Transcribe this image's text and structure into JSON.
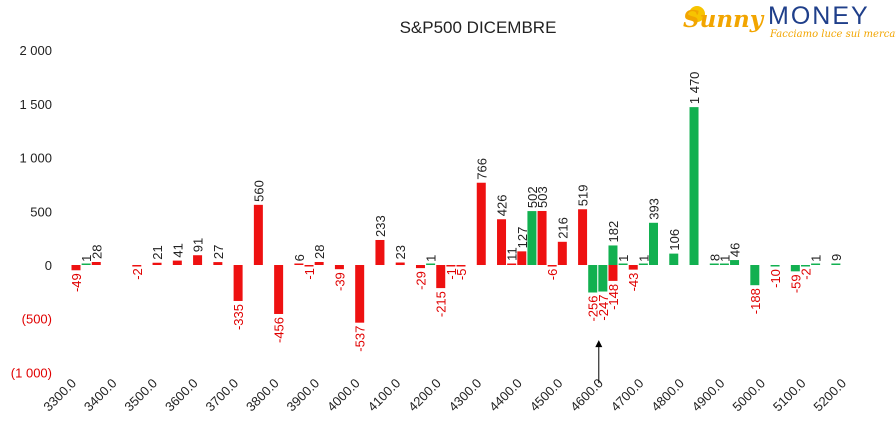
{
  "chart_data": {
    "type": "bar",
    "title": "S&P500 DICEMBRE",
    "xlabel": "",
    "ylabel": "",
    "ylim": [
      -1000,
      2000
    ],
    "y_ticks": [
      {
        "value": 2000,
        "label": "2 000"
      },
      {
        "value": 1500,
        "label": "1 500"
      },
      {
        "value": 1000,
        "label": "1 000"
      },
      {
        "value": 500,
        "label": "500"
      },
      {
        "value": 0,
        "label": "0"
      },
      {
        "value": -500,
        "label": "(500)"
      },
      {
        "value": -1000,
        "label": "(1 000)"
      }
    ],
    "x_ticks": [
      "3300.0",
      "3400.0",
      "3500.0",
      "3600.0",
      "3700.0",
      "3800.0",
      "3900.0",
      "4000.0",
      "4100.0",
      "4200.0",
      "4300.0",
      "4400.0",
      "4500.0",
      "4600.0",
      "4700.0",
      "4800.0",
      "4900.0",
      "5000.0",
      "5100.0",
      "5200.0"
    ],
    "grid": false,
    "colors": {
      "red": "#ee1111",
      "green": "#12b050",
      "negative_label": "#e00000",
      "text": "#222222"
    },
    "series": [
      {
        "color": "red",
        "points": [
          {
            "x": 3300,
            "y": -49,
            "label": "-49"
          },
          {
            "x": 3350,
            "y": 28,
            "label": "28"
          },
          {
            "x": 3450,
            "y": -2,
            "label": "-2"
          },
          {
            "x": 3500,
            "y": 21,
            "label": "21"
          },
          {
            "x": 3550,
            "y": 41,
            "label": "41"
          },
          {
            "x": 3600,
            "y": 91,
            "label": "91"
          },
          {
            "x": 3650,
            "y": 27,
            "label": "27"
          },
          {
            "x": 3700,
            "y": -335,
            "label": "-335"
          },
          {
            "x": 3750,
            "y": 560,
            "label": "560"
          },
          {
            "x": 3800,
            "y": -456,
            "label": "-456"
          },
          {
            "x": 3850,
            "y": 6,
            "label": "6"
          },
          {
            "x": 3875,
            "y": -1,
            "label": "-1"
          },
          {
            "x": 3900,
            "y": 28,
            "label": "28"
          },
          {
            "x": 3950,
            "y": -39,
            "label": "-39"
          },
          {
            "x": 4000,
            "y": -537,
            "label": "-537"
          },
          {
            "x": 4050,
            "y": 233,
            "label": "233"
          },
          {
            "x": 4100,
            "y": 23,
            "label": "23"
          },
          {
            "x": 4150,
            "y": -29,
            "label": "-29"
          },
          {
            "x": 4200,
            "y": -215,
            "label": "-215"
          },
          {
            "x": 4225,
            "y": -1,
            "label": "-1"
          },
          {
            "x": 4250,
            "y": -5,
            "label": "-5"
          },
          {
            "x": 4300,
            "y": 766,
            "label": "766"
          },
          {
            "x": 4350,
            "y": 426,
            "label": "426"
          },
          {
            "x": 4375,
            "y": 11,
            "label": "11"
          },
          {
            "x": 4400,
            "y": 127,
            "label": "127"
          },
          {
            "x": 4450,
            "y": 503,
            "label": "503"
          },
          {
            "x": 4475,
            "y": -6,
            "label": "-6"
          },
          {
            "x": 4500,
            "y": 216,
            "label": "216"
          },
          {
            "x": 4550,
            "y": 519,
            "label": "519"
          },
          {
            "x": 4625,
            "y": -148,
            "label": "-148"
          },
          {
            "x": 4675,
            "y": -43,
            "label": "-43"
          }
        ]
      },
      {
        "color": "green",
        "points": [
          {
            "x": 3325,
            "y": 1,
            "label": "1"
          },
          {
            "x": 4175,
            "y": 1,
            "label": "1"
          },
          {
            "x": 4425,
            "y": 502,
            "label": "502"
          },
          {
            "x": 4575,
            "y": -256,
            "label": "-256"
          },
          {
            "x": 4600,
            "y": -247,
            "label": "-247"
          },
          {
            "x": 4625,
            "y": 182,
            "label": "182"
          },
          {
            "x": 4650,
            "y": 1,
            "label": "1"
          },
          {
            "x": 4700,
            "y": 1,
            "label": "1"
          },
          {
            "x": 4725,
            "y": 393,
            "label": "393"
          },
          {
            "x": 4775,
            "y": 106,
            "label": "106"
          },
          {
            "x": 4825,
            "y": 1470,
            "label": "1 470"
          },
          {
            "x": 4875,
            "y": 8,
            "label": "8"
          },
          {
            "x": 4900,
            "y": 1,
            "label": "1"
          },
          {
            "x": 4925,
            "y": 46,
            "label": "46"
          },
          {
            "x": 4975,
            "y": -188,
            "label": "-188"
          },
          {
            "x": 5025,
            "y": -10,
            "label": "-10"
          },
          {
            "x": 5075,
            "y": -59,
            "label": "-59"
          },
          {
            "x": 5100,
            "y": -2,
            "label": "-2"
          },
          {
            "x": 5125,
            "y": 1,
            "label": "1"
          },
          {
            "x": 5175,
            "y": 9,
            "label": "9"
          }
        ]
      }
    ],
    "annotations": [
      {
        "type": "arrow",
        "x": 4590,
        "from_y": -1100,
        "to_y": -700
      }
    ]
  },
  "logo": {
    "sunny": "Sunny",
    "money": "MONEY",
    "tagline": "Facciamo luce sui mercati"
  }
}
